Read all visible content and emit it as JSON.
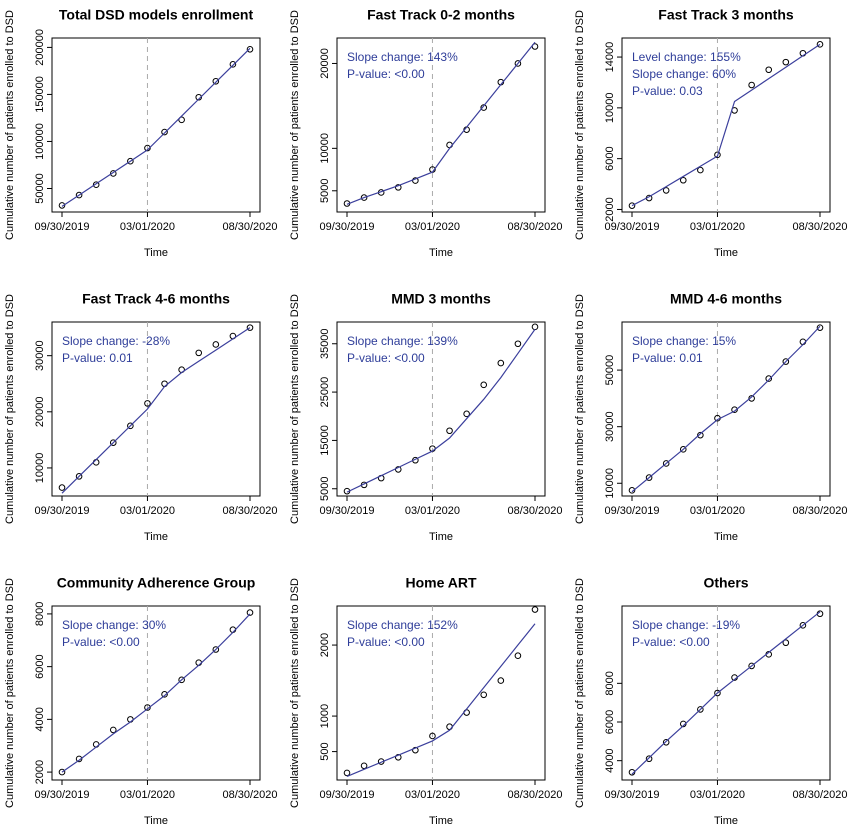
{
  "chart_data": [
    {
      "type": "line",
      "title": "Total DSD models enrollment",
      "x_label": "Time",
      "y_label": "Cumulative number of patients enrolled to DSD",
      "categories": [
        "09/30/2019",
        null,
        null,
        null,
        null,
        "03/01/2020",
        null,
        null,
        null,
        null,
        null,
        "08/30/2020"
      ],
      "intervention": "03/01/2020",
      "ylim": [
        25000,
        210000
      ],
      "yticks": [
        50000,
        100000,
        150000,
        200000
      ],
      "annotations": [],
      "series": [
        {
          "color": "#000000",
          "marker": "circle",
          "values": [
            32000,
            43000,
            54000,
            66000,
            79000,
            93000,
            110000,
            123000,
            147000,
            164000,
            182000,
            198000
          ]
        },
        {
          "color": "#3b3f9c",
          "values": [
            31000,
            43000,
            55000,
            67000,
            79000,
            91000,
            109000,
            127000,
            145000,
            163000,
            181000,
            199000
          ]
        }
      ]
    },
    {
      "type": "line",
      "title": "Fast Track 0-2 months",
      "x_label": "Time",
      "y_label": "Cumulative number of patients enrolled to DSD",
      "categories": [
        "09/30/2019",
        null,
        null,
        null,
        null,
        "03/01/2020",
        null,
        null,
        null,
        null,
        null,
        "08/30/2020"
      ],
      "intervention": "03/01/2020",
      "ylim": [
        2500,
        23000
      ],
      "yticks": [
        5000,
        10000,
        20000
      ],
      "annotations": [
        "Slope change: 143%",
        "P-value: <0.00"
      ],
      "series": [
        {
          "color": "#000000",
          "marker": "circle",
          "values": [
            3500,
            4200,
            4800,
            5400,
            6200,
            7500,
            10400,
            12200,
            14800,
            17800,
            20000,
            22000
          ]
        },
        {
          "color": "#3b3f9c",
          "values": [
            3400,
            4200,
            4900,
            5600,
            6400,
            7200,
            10000,
            12500,
            15000,
            17500,
            20000,
            22500
          ]
        }
      ]
    },
    {
      "type": "line",
      "title": "Fast Track 3 months",
      "x_label": "Time",
      "y_label": "Cumulative number of patients enrolled to DSD",
      "categories": [
        "09/30/2019",
        null,
        null,
        null,
        null,
        "03/01/2020",
        null,
        null,
        null,
        null,
        null,
        "08/30/2020"
      ],
      "intervention": "03/01/2020",
      "ylim": [
        1800,
        15500
      ],
      "yticks": [
        2000,
        6000,
        10000,
        14000
      ],
      "annotations": [
        "Level change: 155%",
        "Slope change: 60%",
        "P-value: 0.03"
      ],
      "series": [
        {
          "color": "#000000",
          "marker": "circle",
          "values": [
            2300,
            2900,
            3500,
            4300,
            5100,
            6300,
            9800,
            11800,
            13000,
            13600,
            14300,
            15000
          ]
        },
        {
          "color": "#3b3f9c",
          "values": [
            2300,
            3000,
            3800,
            4600,
            5400,
            6200,
            10500,
            11400,
            12300,
            13200,
            14100,
            15000
          ]
        }
      ]
    },
    {
      "type": "line",
      "title": "Fast Track 4-6 months",
      "x_label": "Time",
      "y_label": "Cumulative number of patients enrolled to DSD",
      "categories": [
        "09/30/2019",
        null,
        null,
        null,
        null,
        "03/01/2020",
        null,
        null,
        null,
        null,
        null,
        "08/30/2020"
      ],
      "intervention": "03/01/2020",
      "ylim": [
        5000,
        36000
      ],
      "yticks": [
        10000,
        20000,
        30000
      ],
      "annotations": [
        "Slope change: -28%",
        "P-value: 0.01"
      ],
      "series": [
        {
          "color": "#000000",
          "marker": "circle",
          "values": [
            6500,
            8500,
            11000,
            14500,
            17500,
            21500,
            25000,
            27500,
            30500,
            32000,
            33500,
            35000
          ]
        },
        {
          "color": "#3b3f9c",
          "values": [
            5500,
            8500,
            11500,
            14500,
            17500,
            20500,
            24500,
            27000,
            29000,
            31000,
            33000,
            35000
          ]
        }
      ]
    },
    {
      "type": "line",
      "title": "MMD 3 months",
      "x_label": "Time",
      "y_label": "Cumulative number of patients enrolled to DSD",
      "categories": [
        "09/30/2019",
        null,
        null,
        null,
        null,
        "03/01/2020",
        null,
        null,
        null,
        null,
        null,
        "08/30/2020"
      ],
      "intervention": "03/01/2020",
      "ylim": [
        3500,
        39500
      ],
      "yticks": [
        5000,
        15000,
        25000,
        35000
      ],
      "annotations": [
        "Slope change: 139%",
        "P-value: <0.00"
      ],
      "series": [
        {
          "color": "#000000",
          "marker": "circle",
          "values": [
            4500,
            5800,
            7200,
            9000,
            10900,
            13300,
            17000,
            20500,
            26500,
            31000,
            35000,
            38500
          ]
        },
        {
          "color": "#3b3f9c",
          "values": [
            4300,
            6000,
            7700,
            9400,
            11100,
            12800,
            15500,
            19500,
            23500,
            28000,
            33000,
            38000
          ]
        }
      ]
    },
    {
      "type": "line",
      "title": "MMD 4-6 months",
      "x_label": "Time",
      "y_label": "Cumulative number of patients enrolled to DSD",
      "categories": [
        "09/30/2019",
        null,
        null,
        null,
        null,
        "03/01/2020",
        null,
        null,
        null,
        null,
        null,
        "08/30/2020"
      ],
      "intervention": "03/01/2020",
      "ylim": [
        5500,
        67000
      ],
      "yticks": [
        10000,
        30000,
        50000
      ],
      "annotations": [
        "Slope change: 15%",
        "P-value: 0.01"
      ],
      "series": [
        {
          "color": "#000000",
          "marker": "circle",
          "values": [
            7500,
            12000,
            17000,
            22000,
            27000,
            33000,
            36000,
            40000,
            47000,
            53000,
            60000,
            65000
          ]
        },
        {
          "color": "#3b3f9c",
          "values": [
            7000,
            12000,
            17000,
            22000,
            27500,
            32500,
            35500,
            40500,
            46500,
            53000,
            59000,
            65500
          ]
        }
      ]
    },
    {
      "type": "line",
      "title": "Community Adherence Group",
      "x_label": "Time",
      "y_label": "Cumulative number of patients enrolled to DSD",
      "categories": [
        "09/30/2019",
        null,
        null,
        null,
        null,
        "03/01/2020",
        null,
        null,
        null,
        null,
        null,
        "08/30/2020"
      ],
      "intervention": "03/01/2020",
      "ylim": [
        1700,
        8300
      ],
      "yticks": [
        2000,
        4000,
        6000,
        8000
      ],
      "annotations": [
        "Slope change: 30%",
        "P-value: <0.00"
      ],
      "series": [
        {
          "color": "#000000",
          "marker": "circle",
          "values": [
            2000,
            2500,
            3050,
            3600,
            4000,
            4450,
            4950,
            5500,
            6150,
            6650,
            7400,
            8050
          ]
        },
        {
          "color": "#3b3f9c",
          "values": [
            2000,
            2450,
            2950,
            3450,
            3900,
            4400,
            4900,
            5500,
            6050,
            6650,
            7300,
            8000
          ]
        }
      ]
    },
    {
      "type": "line",
      "title": "Home ART",
      "x_label": "Time",
      "y_label": "Cumulative number of patients enrolled to DSD",
      "categories": [
        "09/30/2019",
        null,
        null,
        null,
        null,
        "03/01/2020",
        null,
        null,
        null,
        null,
        null,
        "08/30/2020"
      ],
      "intervention": "03/01/2020",
      "ylim": [
        100,
        2550
      ],
      "yticks": [
        500,
        1000,
        2000
      ],
      "annotations": [
        "Slope change: 152%",
        "P-value: <0.00"
      ],
      "series": [
        {
          "color": "#000000",
          "marker": "circle",
          "values": [
            200,
            300,
            360,
            420,
            520,
            720,
            850,
            1050,
            1300,
            1500,
            1850,
            2500
          ]
        },
        {
          "color": "#3b3f9c",
          "values": [
            150,
            250,
            350,
            450,
            550,
            650,
            800,
            1100,
            1400,
            1700,
            2000,
            2300
          ]
        }
      ]
    },
    {
      "type": "line",
      "title": "Others",
      "x_label": "Time",
      "y_label": "Cumulative number of patients enrolled to DSD",
      "categories": [
        "09/30/2019",
        null,
        null,
        null,
        null,
        "03/01/2020",
        null,
        null,
        null,
        null,
        null,
        "08/30/2020"
      ],
      "intervention": "03/01/2020",
      "ylim": [
        3000,
        12000
      ],
      "yticks": [
        4000,
        6000,
        8000
      ],
      "annotations": [
        "Slope change: -19%",
        "P-value: <0.00"
      ],
      "series": [
        {
          "color": "#000000",
          "marker": "circle",
          "values": [
            3400,
            4100,
            4950,
            5900,
            6650,
            7500,
            8300,
            8900,
            9500,
            10100,
            11000,
            11600
          ]
        },
        {
          "color": "#3b3f9c",
          "values": [
            3300,
            4150,
            5000,
            5800,
            6650,
            7500,
            8200,
            8900,
            9600,
            10300,
            11000,
            11700
          ]
        }
      ]
    }
  ]
}
